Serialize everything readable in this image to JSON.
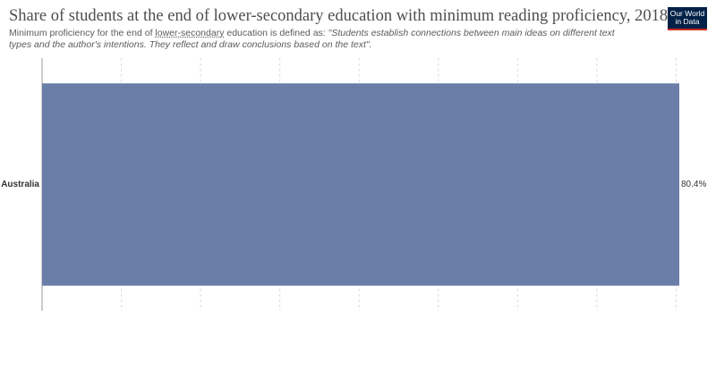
{
  "chart_data": {
    "type": "hbar",
    "title": "Share of students at the end of lower-secondary education with minimum reading proficiency, 2018",
    "subtitle": [
      "Minimum proficiency for the end of ",
      "lower-secondary",
      " education is defined as: ",
      "\"Students establish connections between main ideas on different text types and the author's intentions. They reflect and draw conclusions based on the text\"."
    ],
    "logo": [
      "Our World",
      "in Data"
    ],
    "categories": [
      "Australia"
    ],
    "values": [
      80.4
    ],
    "value_labels": [
      "80.4%"
    ],
    "color": "#6a7ea8",
    "xlim": [
      0,
      80.4
    ],
    "xticks": [
      0,
      10,
      20,
      30,
      40,
      50,
      60,
      70,
      80
    ],
    "grid": true
  }
}
